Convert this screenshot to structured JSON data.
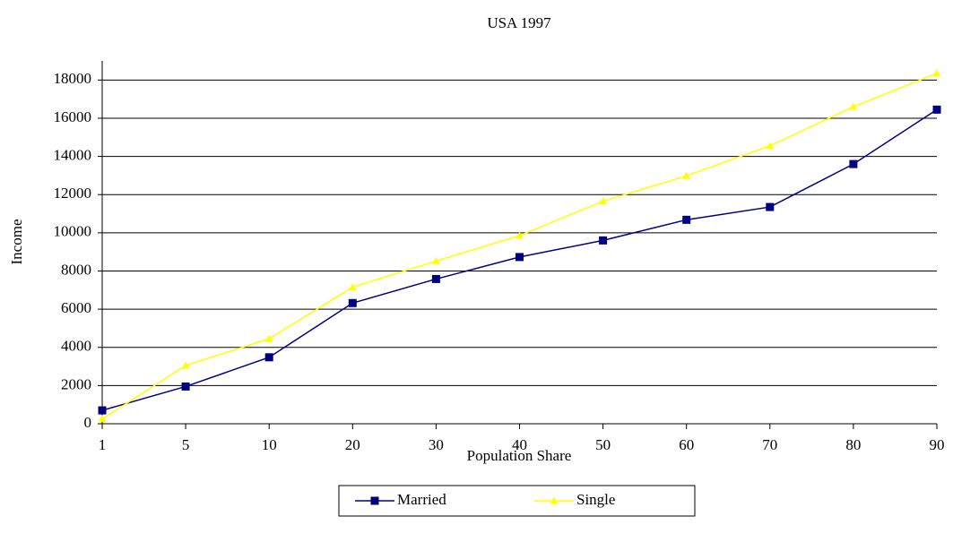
{
  "chart_data": {
    "type": "line",
    "title": "USA 1997",
    "x_label": "Population Share",
    "y_label": "Income",
    "categories": [
      "1",
      "5",
      "10",
      "20",
      "30",
      "40",
      "50",
      "60",
      "70",
      "80",
      "90"
    ],
    "series": [
      {
        "name": "Married",
        "color": "#000080",
        "marker": "square",
        "values": [
          700,
          1950,
          3480,
          6320,
          7580,
          8730,
          9600,
          10680,
          11350,
          13600,
          16450
        ]
      },
      {
        "name": "Single",
        "color": "#ffff00",
        "marker": "triangle",
        "values": [
          250,
          3050,
          4450,
          7150,
          8520,
          9850,
          11650,
          12980,
          14550,
          16600,
          18350
        ]
      }
    ],
    "ylim": [
      0,
      19000
    ],
    "yticks": [
      0,
      2000,
      4000,
      6000,
      8000,
      10000,
      12000,
      14000,
      16000,
      18000
    ],
    "grid": true,
    "legend": "bottom"
  }
}
